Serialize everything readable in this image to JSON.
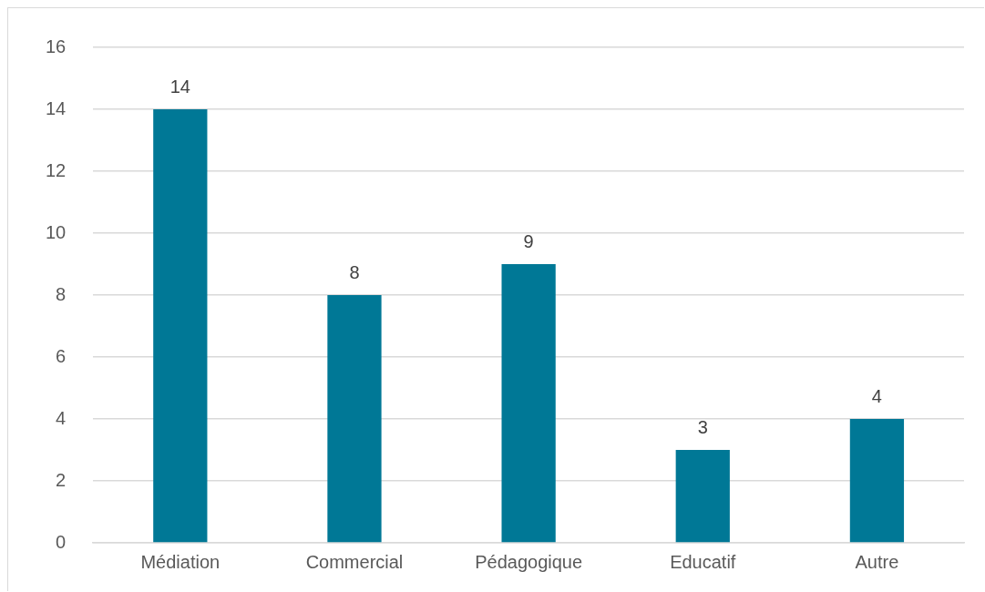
{
  "chart_data": {
    "type": "bar",
    "categories": [
      "Médiation",
      "Commercial",
      "Pédagogique",
      "Educatif",
      "Autre"
    ],
    "values": [
      14,
      8,
      9,
      3,
      4
    ],
    "color": "#007896",
    "ylim": [
      0,
      16
    ],
    "yticks": [
      0,
      2,
      4,
      6,
      8,
      10,
      12,
      14,
      16
    ],
    "grid": "y",
    "legend": false,
    "data_labels": true
  }
}
